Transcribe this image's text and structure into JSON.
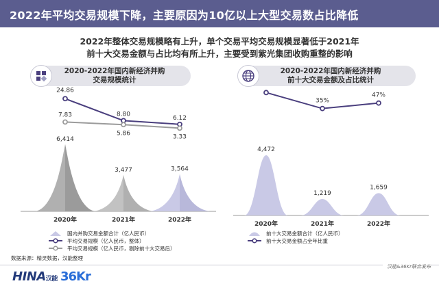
{
  "page": {
    "title": "2022年平均交易规模下降，主要原因为10亿以上大型交易数占比降低",
    "subtitle_line1": "2022年整体交易规模略有上升，单个交易平均交易规模显著低于2021年",
    "subtitle_line2": "前十大交易金额与占比均有所上升，主要受到紫光集团收购重整的影响",
    "source": "数据来源：精灵数据，汉能整理",
    "footer_credit": "汉能&36Kr联合发布",
    "logo_hina": "HINA",
    "logo_hina_cn": "汉能",
    "logo_36kr": "36Kr"
  },
  "left_panel": {
    "header_line1": "2020-2022年国内新经济并购",
    "header_line2": "交易规模统计",
    "icon": "grid-squares-icon"
  },
  "right_panel": {
    "header_line1": "2020-2022年国内新经济并购",
    "header_line2": "前十大交易金额及占比统计",
    "icon": "globe-icon"
  },
  "colors": {
    "header_bg": "#5b5d8f",
    "line_dark": "#4a3f7e",
    "line_gray": "#9b9b9b",
    "peak_gray": "#b5b5b5",
    "peak_lavender": "#c9c9e6"
  },
  "chart_data": [
    {
      "type": "line",
      "panel": "left",
      "categories": [
        "2020年",
        "2021年",
        "2022年"
      ],
      "series": [
        {
          "name": "国内并购交易金额合计（亿人民币）",
          "kind": "area-peak",
          "values": [
            6414,
            3477,
            3564
          ],
          "labels": [
            "6,414",
            "3,477",
            "3,564"
          ]
        },
        {
          "name": "平均交易规模（亿人民币，整体）",
          "kind": "line",
          "values": [
            24.86,
            8.8,
            6.12
          ],
          "labels": [
            "24.86",
            "8.80",
            "6.12"
          ]
        },
        {
          "name": "平均交易规模（亿人民币，剔除前十大交易后）",
          "kind": "line",
          "values": [
            7.83,
            5.86,
            3.33
          ],
          "labels": [
            "7.83",
            "5.86",
            "3.33"
          ]
        }
      ]
    },
    {
      "type": "line",
      "panel": "right",
      "categories": [
        "2020年",
        "2021年",
        "2022年"
      ],
      "series": [
        {
          "name": "前十大交易金额合计（亿人民币）",
          "kind": "area-peak",
          "values": [
            4472,
            1219,
            1659
          ],
          "labels": [
            "4,472",
            "1,219",
            "1,659"
          ]
        },
        {
          "name": "前十大交易金额占全年比重",
          "kind": "line",
          "values": [
            70,
            35,
            47
          ],
          "labels": [
            "70%",
            "35%",
            "47%"
          ]
        }
      ]
    }
  ]
}
